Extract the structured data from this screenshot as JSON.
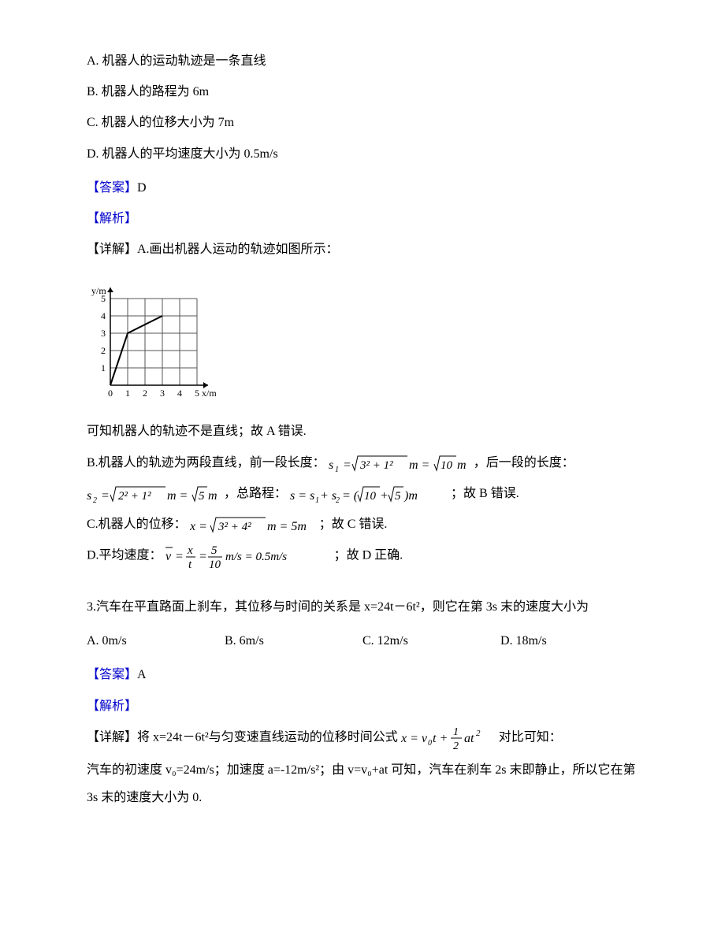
{
  "q2": {
    "options": {
      "A": "A. 机器人的运动轨迹是一条直线",
      "B": "B. 机器人的路程为 6m",
      "C": "C. 机器人的位移大小为 7m",
      "D": "D. 机器人的平均速度大小为 0.5m/s"
    },
    "answer_label": "【答案】",
    "answer": "D",
    "analysis_label": "【解析】",
    "detail_prefix": "【详解】A.画出机器人运动的轨迹如图所示：",
    "chart": {
      "x_label": "x/m",
      "y_label": "y/m",
      "x_ticks": [
        "0",
        "1",
        "2",
        "3",
        "4",
        "5"
      ],
      "y_ticks": [
        "1",
        "2",
        "3",
        "4",
        "5"
      ],
      "grid_cells": 5,
      "cell_size": 22,
      "path_points": [
        [
          0,
          0
        ],
        [
          1,
          3
        ],
        [
          3,
          4
        ]
      ],
      "bg_color": "#ffffff",
      "grid_color": "#555555",
      "line_color": "#000000",
      "text_color": "#000000",
      "line_width": 2,
      "font_size": 12
    },
    "concl_A": "可知机器人的轨迹不是直线；故 A 错误.",
    "line_B_prefix": "B.机器人的轨迹为两段直线，前一段长度：",
    "line_B_suffix": "，后一段的长度：",
    "line_B2_mid": "，总路程：",
    "line_B2_end": " ；故 B 错误.",
    "line_C_prefix": "C.机器人的位移：",
    "line_C_end": "；故 C 错误.",
    "line_D_prefix": "D.平均速度：",
    "line_D_end": " ；故 D 正确."
  },
  "q3": {
    "stem": "3.汽车在平直路面上刹车，其位移与时间的关系是 x=24t－6t²，则它在第 3s 末的速度大小为",
    "options": {
      "A": "A. 0m/s",
      "B": "B. 6m/s",
      "C": "C. 12m/s",
      "D": "D. 18m/s"
    },
    "answer_label": "【答案】",
    "answer": "A",
    "analysis_label": "【解析】",
    "detail_prefix": "【详解】将 x=24t－6t²与匀变速直线运动的位移时间公式",
    "detail_suffix": "对比可知：",
    "detail_line2": "汽车的初速度 v₀=24m/s；加速度 a=-12m/s²；由 v=v₀+at 可知，汽车在刹车 2s 末即静止，所以它在第 3s 末的速度大小为 0."
  }
}
